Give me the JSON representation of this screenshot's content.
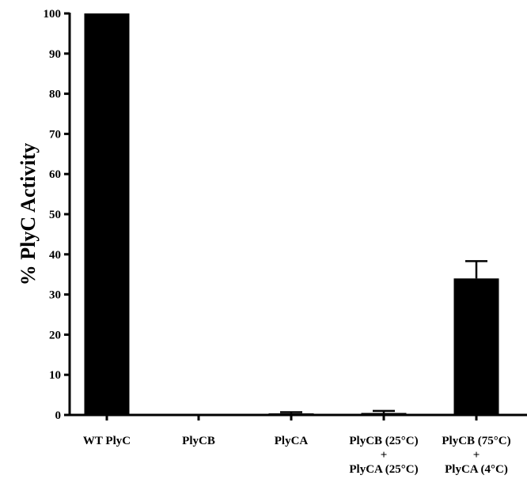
{
  "chart_data": {
    "type": "bar",
    "title": "",
    "xlabel": "",
    "ylabel": "% PlyC Activity",
    "ylim": [
      0,
      100
    ],
    "yticks": [
      0,
      10,
      20,
      30,
      40,
      50,
      60,
      70,
      80,
      90,
      100
    ],
    "grid": false,
    "bar_color": "#000000",
    "categories": [
      [
        "WT PlyC"
      ],
      [
        "PlyCB"
      ],
      [
        "PlyCA"
      ],
      [
        "PlyCB (25°C)",
        "+",
        "PlyCA (25°C)"
      ],
      [
        "PlyCB (75°C)",
        "+",
        "PlyCA (4°C)"
      ]
    ],
    "values": [
      100,
      0,
      0.4,
      0.5,
      34
    ],
    "errors": [
      0,
      0,
      0.3,
      0.5,
      4.3
    ]
  }
}
